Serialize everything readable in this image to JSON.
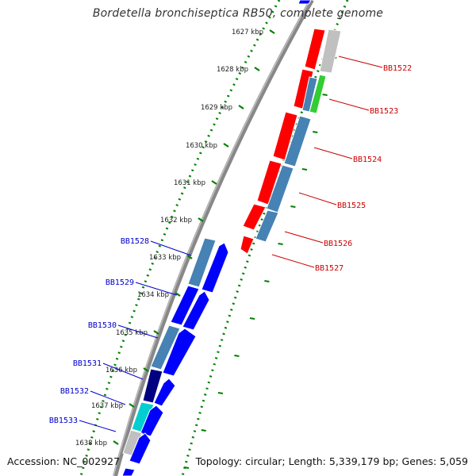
{
  "title": "Bordetella bronchiseptica RB50, complete genome",
  "footer": {
    "accession": "Accession: NC_002927",
    "info": "Topology: circular; Length: 5,339,179 bp; Genes: 5,059"
  },
  "scale_ticks": [
    "1627 kbp",
    "1628 kbp",
    "1629 kbp",
    "1630 kbp",
    "1631 kbp",
    "1632 kbp",
    "1633 kbp",
    "1634 kbp",
    "1635 kbp",
    "1636 kbp",
    "1637 kbp",
    "1638 kbp"
  ],
  "gene_labels_right": [
    "BB1522",
    "BB1523",
    "BB1524",
    "BB1525",
    "BB1526",
    "BB1527"
  ],
  "gene_labels_left": [
    "BB1528",
    "BB1529",
    "BB1530",
    "BB1531",
    "BB1532",
    "BB1533"
  ],
  "colors": {
    "right_label": "#cc0000",
    "left_label": "#0000cc",
    "tick": "#008000",
    "backbone": "#808080",
    "forward_gene": "#ff0000",
    "reverse_gene": "#0000ff",
    "cds": "#4682b4",
    "gray_gene": "#c0c0c0",
    "green_gene": "#32cd32",
    "navy_gene": "#000080",
    "cyan_gene": "#00ced1"
  }
}
